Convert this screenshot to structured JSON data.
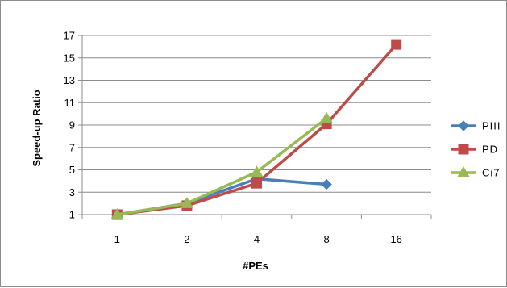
{
  "chart_data": {
    "type": "line",
    "categories": [
      "1",
      "2",
      "4",
      "8",
      "16"
    ],
    "xlabel": "#PEs",
    "ylabel": "Speed-up Ratio",
    "ylim": [
      1,
      17
    ],
    "yticks": [
      1,
      3,
      5,
      7,
      9,
      11,
      13,
      15,
      17
    ],
    "grid": "horizontal",
    "legend": "right",
    "series": [
      {
        "name": "PIII",
        "color": "#4a7ebb",
        "marker": "diamond",
        "values": [
          1,
          2,
          4.2,
          3.7,
          null
        ]
      },
      {
        "name": "PD",
        "color": "#be4b48",
        "marker": "square",
        "values": [
          1,
          1.8,
          3.8,
          9.1,
          16.2
        ]
      },
      {
        "name": "Ci7",
        "color": "#98b954",
        "marker": "triangle",
        "values": [
          1,
          2.0,
          4.8,
          9.6,
          null
        ]
      }
    ]
  }
}
